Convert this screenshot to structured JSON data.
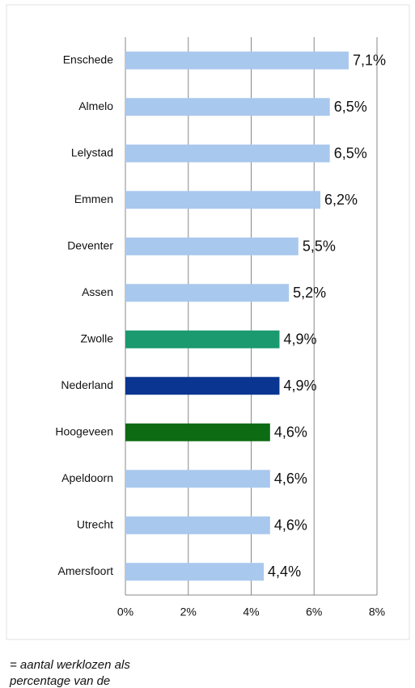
{
  "chart_data": {
    "type": "bar",
    "orientation": "horizontal",
    "categories": [
      "Enschede",
      "Almelo",
      "Lelystad",
      "Emmen",
      "Deventer",
      "Assen",
      "Zwolle",
      "Nederland",
      "Hoogeveen",
      "Apeldoorn",
      "Utrecht",
      "Amersfoort"
    ],
    "values": [
      7.1,
      6.5,
      6.5,
      6.2,
      5.5,
      5.2,
      4.9,
      4.9,
      4.6,
      4.6,
      4.6,
      4.4
    ],
    "value_labels": [
      "7,1%",
      "6,5%",
      "6,5%",
      "6,2%",
      "5,5%",
      "5,2%",
      "4,9%",
      "4,9%",
      "4,6%",
      "4,6%",
      "4,6%",
      "4,4%"
    ],
    "colors": [
      "#a9c8ee",
      "#a9c8ee",
      "#a9c8ee",
      "#a9c8ee",
      "#a9c8ee",
      "#a9c8ee",
      "#1a9a6e",
      "#0a3591",
      "#0d6b14",
      "#a9c8ee",
      "#a9c8ee",
      "#a9c8ee"
    ],
    "xlim": [
      0,
      8
    ],
    "xticks": [
      {
        "value": 0,
        "label": "0%"
      },
      {
        "value": 2,
        "label": "2%"
      },
      {
        "value": 4,
        "label": "4%"
      },
      {
        "value": 6,
        "label": "6%"
      },
      {
        "value": 8,
        "label": "8%"
      }
    ],
    "grid": true,
    "annotations": [
      "= aantal werklozen als",
      "percentage van de"
    ]
  }
}
